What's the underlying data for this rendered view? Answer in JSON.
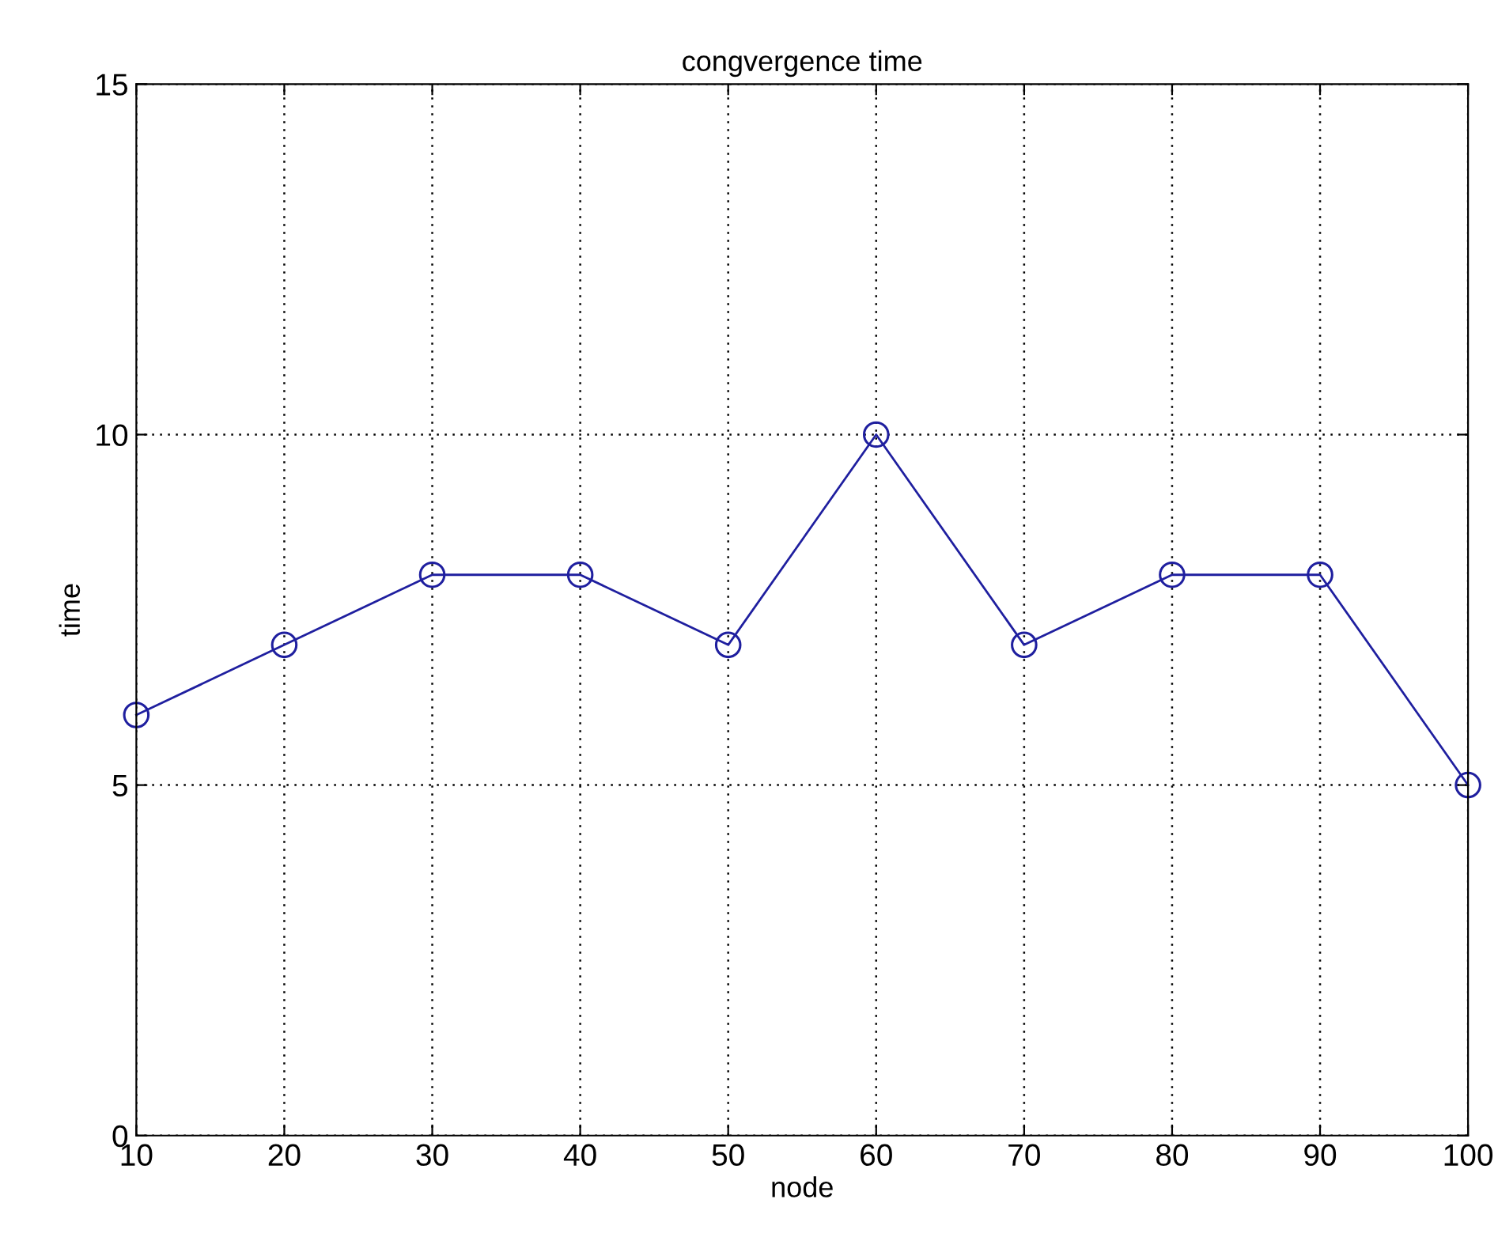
{
  "chart_data": {
    "type": "line",
    "title": "congvergence time",
    "xlabel": "node",
    "ylabel": "time",
    "x": [
      10,
      20,
      30,
      40,
      50,
      60,
      70,
      80,
      90,
      100
    ],
    "series": [
      {
        "color": "#1f1f9f",
        "values": [
          6,
          7,
          8,
          8,
          7,
          10,
          7,
          8,
          8,
          5
        ]
      }
    ],
    "xlim": [
      10,
      100
    ],
    "xticks": [
      10,
      20,
      30,
      40,
      50,
      60,
      70,
      80,
      90,
      100
    ],
    "ylim": [
      0,
      15
    ],
    "yticks": [
      0,
      5,
      10,
      15
    ],
    "grid": true,
    "marker": "circle",
    "line_style": "solid"
  }
}
